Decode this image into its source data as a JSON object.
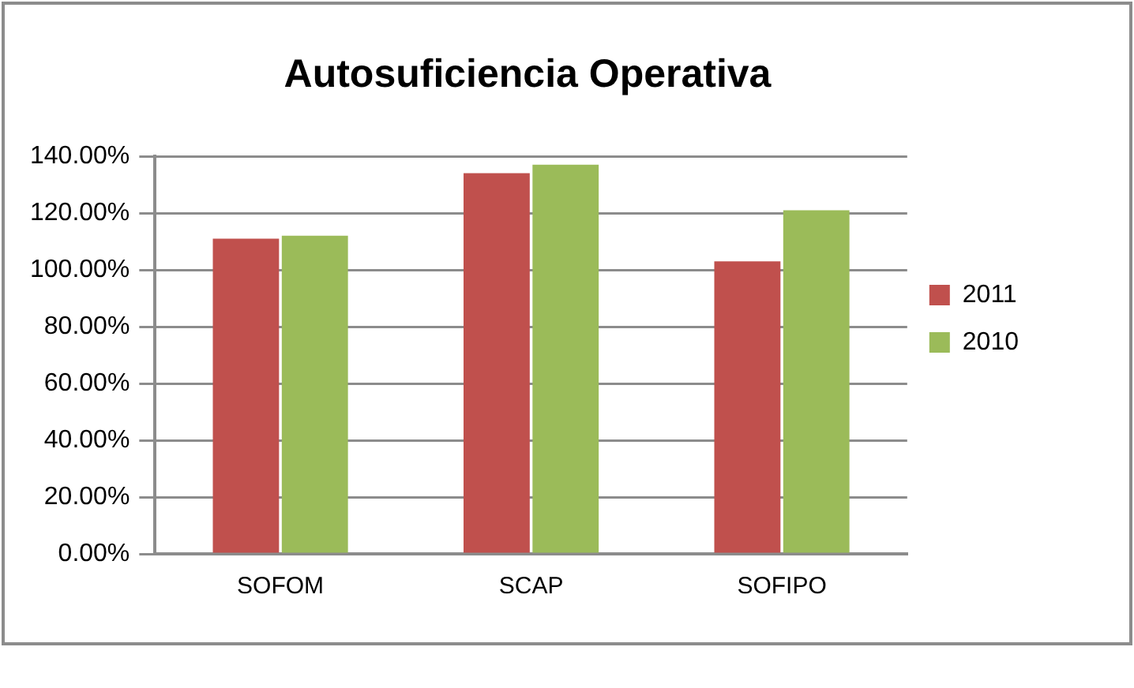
{
  "chart_data": {
    "type": "bar",
    "title": "Autosuficiencia Operativa",
    "categories": [
      "SOFOM",
      "SCAP",
      "SOFIPO"
    ],
    "series": [
      {
        "name": "2011",
        "color": "#c0504d",
        "values": [
          111,
          134,
          103
        ]
      },
      {
        "name": "2010",
        "color": "#9bbb59",
        "values": [
          112,
          137,
          121
        ]
      }
    ],
    "ylim": [
      0,
      140
    ],
    "yticks": [
      {
        "value": 0,
        "label": "0.00%"
      },
      {
        "value": 20,
        "label": "20.00%"
      },
      {
        "value": 40,
        "label": "40.00%"
      },
      {
        "value": 60,
        "label": "60.00%"
      },
      {
        "value": 80,
        "label": "80.00%"
      },
      {
        "value": 100,
        "label": "100.00%"
      },
      {
        "value": 120,
        "label": "120.00%"
      },
      {
        "value": 140,
        "label": "140.00%"
      }
    ],
    "grid": "y",
    "legend": "right"
  }
}
